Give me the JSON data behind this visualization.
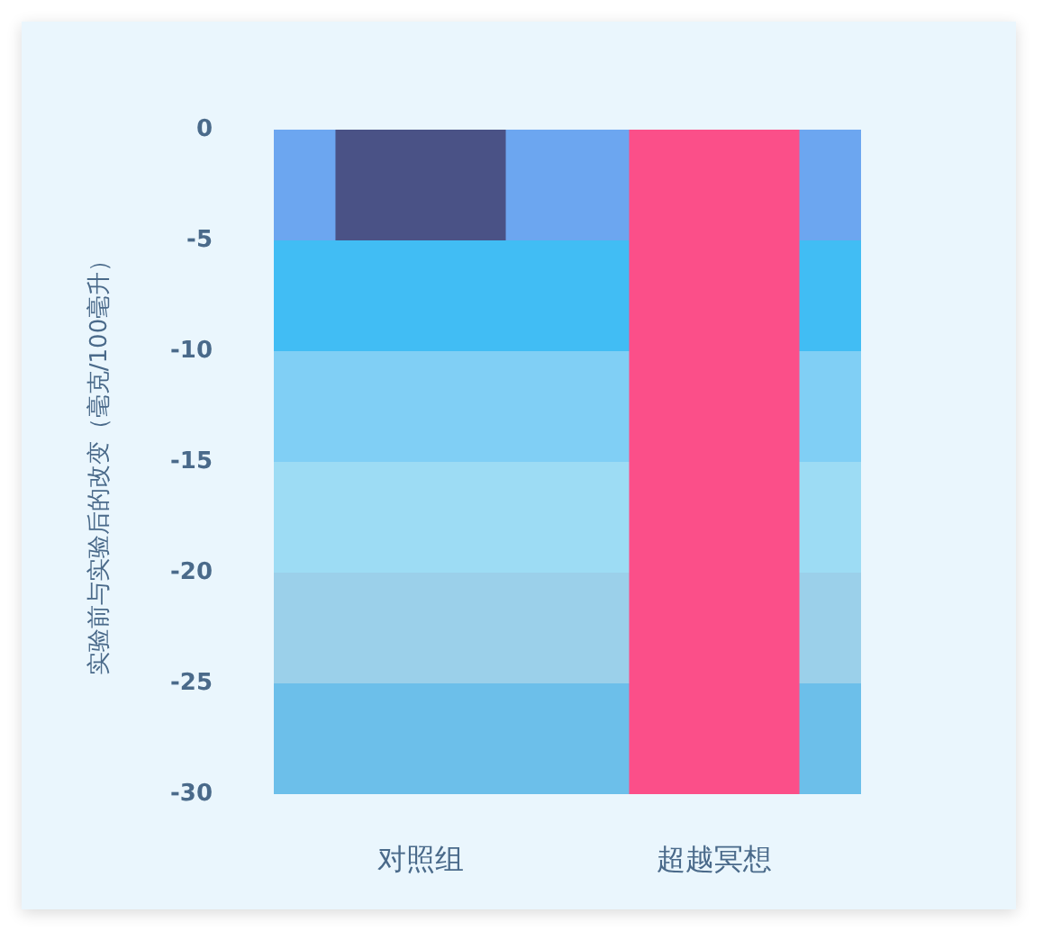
{
  "chart_data": {
    "type": "bar",
    "ylabel": "实验前与实验后的改变（毫克/100毫升）",
    "categories": [
      "对照组",
      "超越冥想"
    ],
    "values": [
      -5,
      -30
    ],
    "colors": [
      "#4a5286",
      "#fb4f89"
    ],
    "ylim": [
      -30,
      0
    ],
    "yticks": [
      0,
      -5,
      -10,
      -15,
      -20,
      -25,
      -30
    ],
    "grid": false,
    "bands": [
      {
        "axis": "y",
        "from": 0,
        "to": -5,
        "color": "#6ca6f0"
      },
      {
        "axis": "y",
        "from": -5,
        "to": -10,
        "color": "#41bdf4"
      },
      {
        "axis": "y",
        "from": -10,
        "to": -15,
        "color": "#80cff5"
      },
      {
        "axis": "y",
        "from": -15,
        "to": -20,
        "color": "#9ddcf4"
      },
      {
        "axis": "y",
        "from": -20,
        "to": -25,
        "color": "#9bd0ea"
      },
      {
        "axis": "y",
        "from": -25,
        "to": -30,
        "color": "#6cbfea"
      }
    ]
  }
}
